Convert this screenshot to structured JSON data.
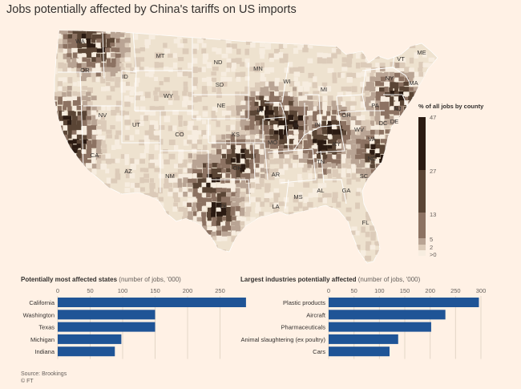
{
  "title": "Jobs potentially affected by China's tariffs on US imports",
  "map": {
    "legend_title": "% of all jobs by county",
    "legend_ticks": [
      "47",
      "27",
      "13",
      "5",
      "2",
      ">0"
    ],
    "legend_colors": [
      "#2b1b12",
      "#5a4535",
      "#8c7262",
      "#b9a494",
      "#dccbb9",
      "#f7ede0"
    ],
    "base_color": "#eee2cf",
    "state_labels": [
      "WA",
      "OR",
      "CA",
      "ID",
      "MT",
      "WY",
      "NV",
      "UT",
      "CO",
      "AZ",
      "NM",
      "ND",
      "SD",
      "NE",
      "KS",
      "OK",
      "TX",
      "MN",
      "IA",
      "MO",
      "AR",
      "LA",
      "WI",
      "IL",
      "MI",
      "IN",
      "OH",
      "KY",
      "TN",
      "MS",
      "AL",
      "GA",
      "FL",
      "SC",
      "NC",
      "VA",
      "WV",
      "PA",
      "NY",
      "VT",
      "ME",
      "MA",
      "NJ",
      "DE",
      "DC"
    ]
  },
  "states_chart": {
    "title": "Potentially most affected states",
    "unit": "(number of jobs, '000)",
    "type": "bar",
    "categories": [
      "California",
      "Washington",
      "Texas",
      "Michigan",
      "Indiana"
    ],
    "values": [
      290,
      150,
      150,
      98,
      88
    ],
    "ticks": [
      "0",
      "50",
      "100",
      "150",
      "200",
      "250"
    ],
    "xlim": [
      0,
      300
    ],
    "bar_color": "#1f5496"
  },
  "industries_chart": {
    "title": "Largest industries potentially affected",
    "unit": "(number of jobs, '000)",
    "type": "bar",
    "categories": [
      "Plastic products",
      "Aircraft",
      "Pharmaceuticals",
      "Animal slaughtering (ex poultry)",
      "Cars"
    ],
    "values": [
      296,
      230,
      202,
      137,
      120
    ],
    "ticks": [
      "0",
      "50",
      "100",
      "150",
      "200",
      "250",
      "300"
    ],
    "xlim": [
      0,
      300
    ],
    "bar_color": "#1f5496"
  },
  "source": "Source: Brookings",
  "credit": "© FT"
}
